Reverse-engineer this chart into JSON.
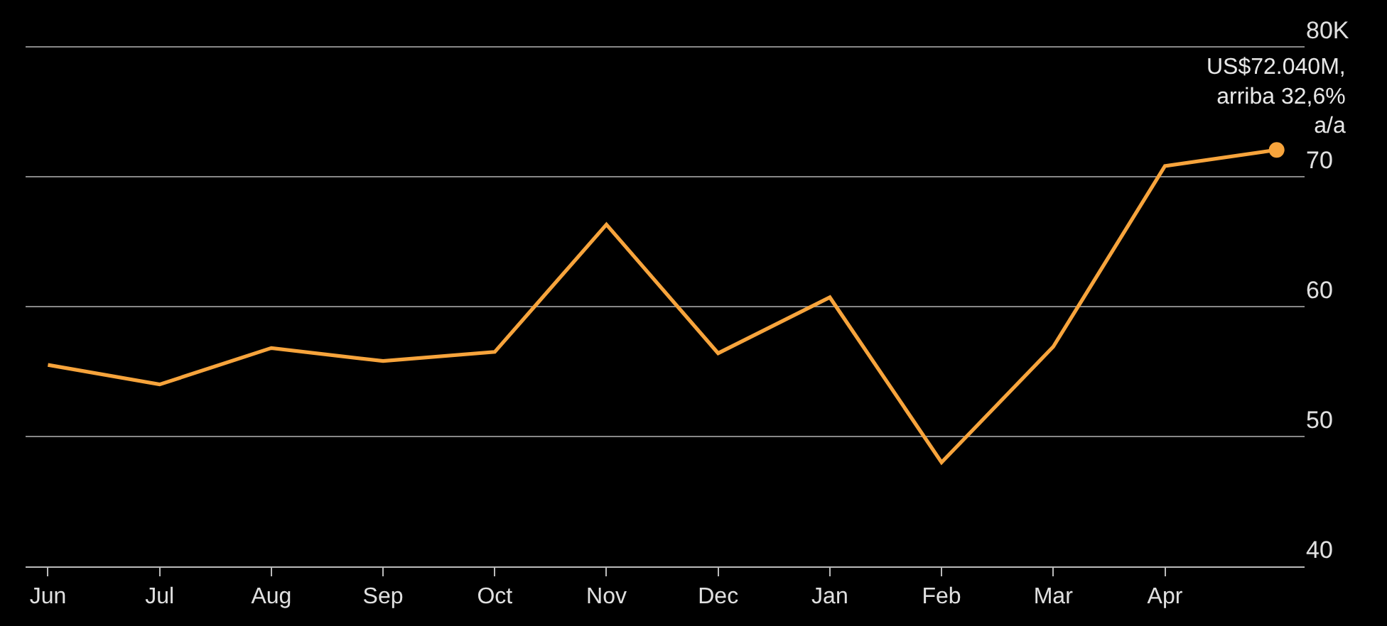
{
  "chart_data": {
    "type": "line",
    "categories": [
      "Jun",
      "Jul",
      "Aug",
      "Sep",
      "Oct",
      "Nov",
      "Dec",
      "Jan",
      "Feb",
      "Mar",
      "Apr",
      null
    ],
    "series": [
      {
        "color": "#f7a43c",
        "values": [
          55.5,
          54.0,
          56.8,
          55.8,
          56.5,
          66.3,
          56.4,
          60.7,
          48.0,
          56.9,
          70.8,
          72.04
        ]
      }
    ],
    "ylim": [
      40,
      80
    ],
    "yticks": [
      {
        "value": 40,
        "label": "40"
      },
      {
        "value": 50,
        "label": "50"
      },
      {
        "value": 60,
        "label": "60"
      },
      {
        "value": 70,
        "label": "70"
      },
      {
        "value": 80,
        "label": "80K"
      }
    ],
    "grid": "y",
    "line_style": "solid",
    "annotations": [
      {
        "text": "US$72.040M,\narriba 32,6%\na/a",
        "y": 72.04
      }
    ]
  }
}
